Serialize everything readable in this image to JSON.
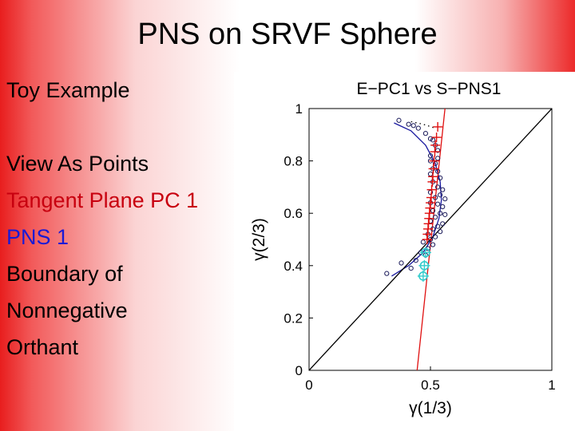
{
  "slide": {
    "title": "PNS on SRVF Sphere",
    "bullets": [
      {
        "text": "Toy Example",
        "color": "#000000"
      },
      {
        "text": "View As Points",
        "color": "#000000"
      },
      {
        "text": "Tangent Plane PC 1",
        "color": "#c8000f"
      },
      {
        "text": "PNS 1",
        "color": "#1a1ad6"
      },
      {
        "text": "Boundary of",
        "color": "#000000"
      },
      {
        "text": "Nonnegative",
        "color": "#000000"
      },
      {
        "text": "Orthant",
        "color": "#000000"
      }
    ]
  },
  "chart_data": {
    "type": "scatter",
    "title": "E−PC1 vs S−PNS1",
    "xlabel": "γ(1/3)",
    "ylabel": "γ(2/3)",
    "xlim": [
      0,
      1
    ],
    "ylim": [
      0,
      1
    ],
    "xticks": [
      0,
      0.5,
      1
    ],
    "xtick_labels": [
      "0",
      "0.5",
      "1"
    ],
    "yticks": [
      0,
      0.2,
      0.4,
      0.6,
      0.8,
      1
    ],
    "ytick_labels": [
      "0",
      "0.2",
      "0.4",
      "0.6",
      "0.8",
      "1"
    ],
    "grid": false,
    "series": [
      {
        "kind": "points",
        "marker": "circle",
        "color": "#1a1a5a",
        "points": [
          [
            0.37,
            0.955
          ],
          [
            0.41,
            0.94
          ],
          [
            0.43,
            0.935
          ],
          [
            0.45,
            0.925
          ],
          [
            0.48,
            0.905
          ],
          [
            0.5,
            0.885
          ],
          [
            0.51,
            0.88
          ],
          [
            0.52,
            0.86
          ],
          [
            0.53,
            0.84
          ],
          [
            0.5,
            0.82
          ],
          [
            0.53,
            0.81
          ],
          [
            0.5,
            0.8
          ],
          [
            0.52,
            0.79
          ],
          [
            0.51,
            0.77
          ],
          [
            0.53,
            0.76
          ],
          [
            0.5,
            0.75
          ],
          [
            0.54,
            0.735
          ],
          [
            0.51,
            0.72
          ],
          [
            0.53,
            0.7
          ],
          [
            0.55,
            0.69
          ],
          [
            0.5,
            0.68
          ],
          [
            0.54,
            0.67
          ],
          [
            0.52,
            0.66
          ],
          [
            0.56,
            0.655
          ],
          [
            0.5,
            0.64
          ],
          [
            0.53,
            0.635
          ],
          [
            0.55,
            0.625
          ],
          [
            0.51,
            0.61
          ],
          [
            0.54,
            0.6
          ],
          [
            0.56,
            0.595
          ],
          [
            0.52,
            0.585
          ],
          [
            0.5,
            0.57
          ],
          [
            0.55,
            0.56
          ],
          [
            0.53,
            0.55
          ],
          [
            0.51,
            0.54
          ],
          [
            0.54,
            0.53
          ],
          [
            0.49,
            0.52
          ],
          [
            0.52,
            0.51
          ],
          [
            0.5,
            0.5
          ],
          [
            0.47,
            0.49
          ],
          [
            0.51,
            0.48
          ],
          [
            0.49,
            0.465
          ],
          [
            0.46,
            0.45
          ],
          [
            0.48,
            0.44
          ],
          [
            0.44,
            0.42
          ],
          [
            0.38,
            0.41
          ],
          [
            0.42,
            0.39
          ],
          [
            0.32,
            0.37
          ]
        ]
      },
      {
        "kind": "points",
        "marker": "plus",
        "color": "#e01010",
        "points": [
          [
            0.53,
            0.93
          ],
          [
            0.525,
            0.89
          ],
          [
            0.52,
            0.86
          ],
          [
            0.518,
            0.835
          ],
          [
            0.515,
            0.8
          ],
          [
            0.512,
            0.77
          ],
          [
            0.51,
            0.74
          ],
          [
            0.508,
            0.72
          ],
          [
            0.505,
            0.69
          ],
          [
            0.503,
            0.66
          ],
          [
            0.5,
            0.64
          ],
          [
            0.498,
            0.62
          ],
          [
            0.496,
            0.6
          ],
          [
            0.494,
            0.58
          ],
          [
            0.492,
            0.56
          ],
          [
            0.49,
            0.54
          ],
          [
            0.488,
            0.52
          ],
          [
            0.486,
            0.5
          ]
        ]
      },
      {
        "kind": "points",
        "marker": "circle-plus",
        "color": "#33cccc",
        "points": [
          [
            0.48,
            0.45
          ],
          [
            0.475,
            0.4
          ],
          [
            0.47,
            0.36
          ]
        ]
      },
      {
        "kind": "line",
        "style": "dotted",
        "color": "#000000",
        "points": [
          [
            0.42,
            0.95
          ],
          [
            0.47,
            0.94
          ],
          [
            0.52,
            0.925
          ]
        ]
      },
      {
        "kind": "line",
        "style": "solid",
        "color": "#1a1aa0",
        "points": [
          [
            0.35,
            0.945
          ],
          [
            0.42,
            0.915
          ],
          [
            0.48,
            0.86
          ],
          [
            0.52,
            0.79
          ],
          [
            0.54,
            0.72
          ],
          [
            0.545,
            0.65
          ],
          [
            0.535,
            0.58
          ],
          [
            0.51,
            0.51
          ],
          [
            0.47,
            0.45
          ],
          [
            0.41,
            0.4
          ],
          [
            0.34,
            0.36
          ]
        ]
      },
      {
        "kind": "line",
        "style": "solid",
        "color": "#e01010",
        "points": [
          [
            0.56,
            1.0
          ],
          [
            0.445,
            0.0
          ]
        ]
      },
      {
        "kind": "line",
        "style": "solid",
        "color": "#000000",
        "points": [
          [
            0,
            0
          ],
          [
            1,
            1
          ]
        ]
      }
    ]
  }
}
